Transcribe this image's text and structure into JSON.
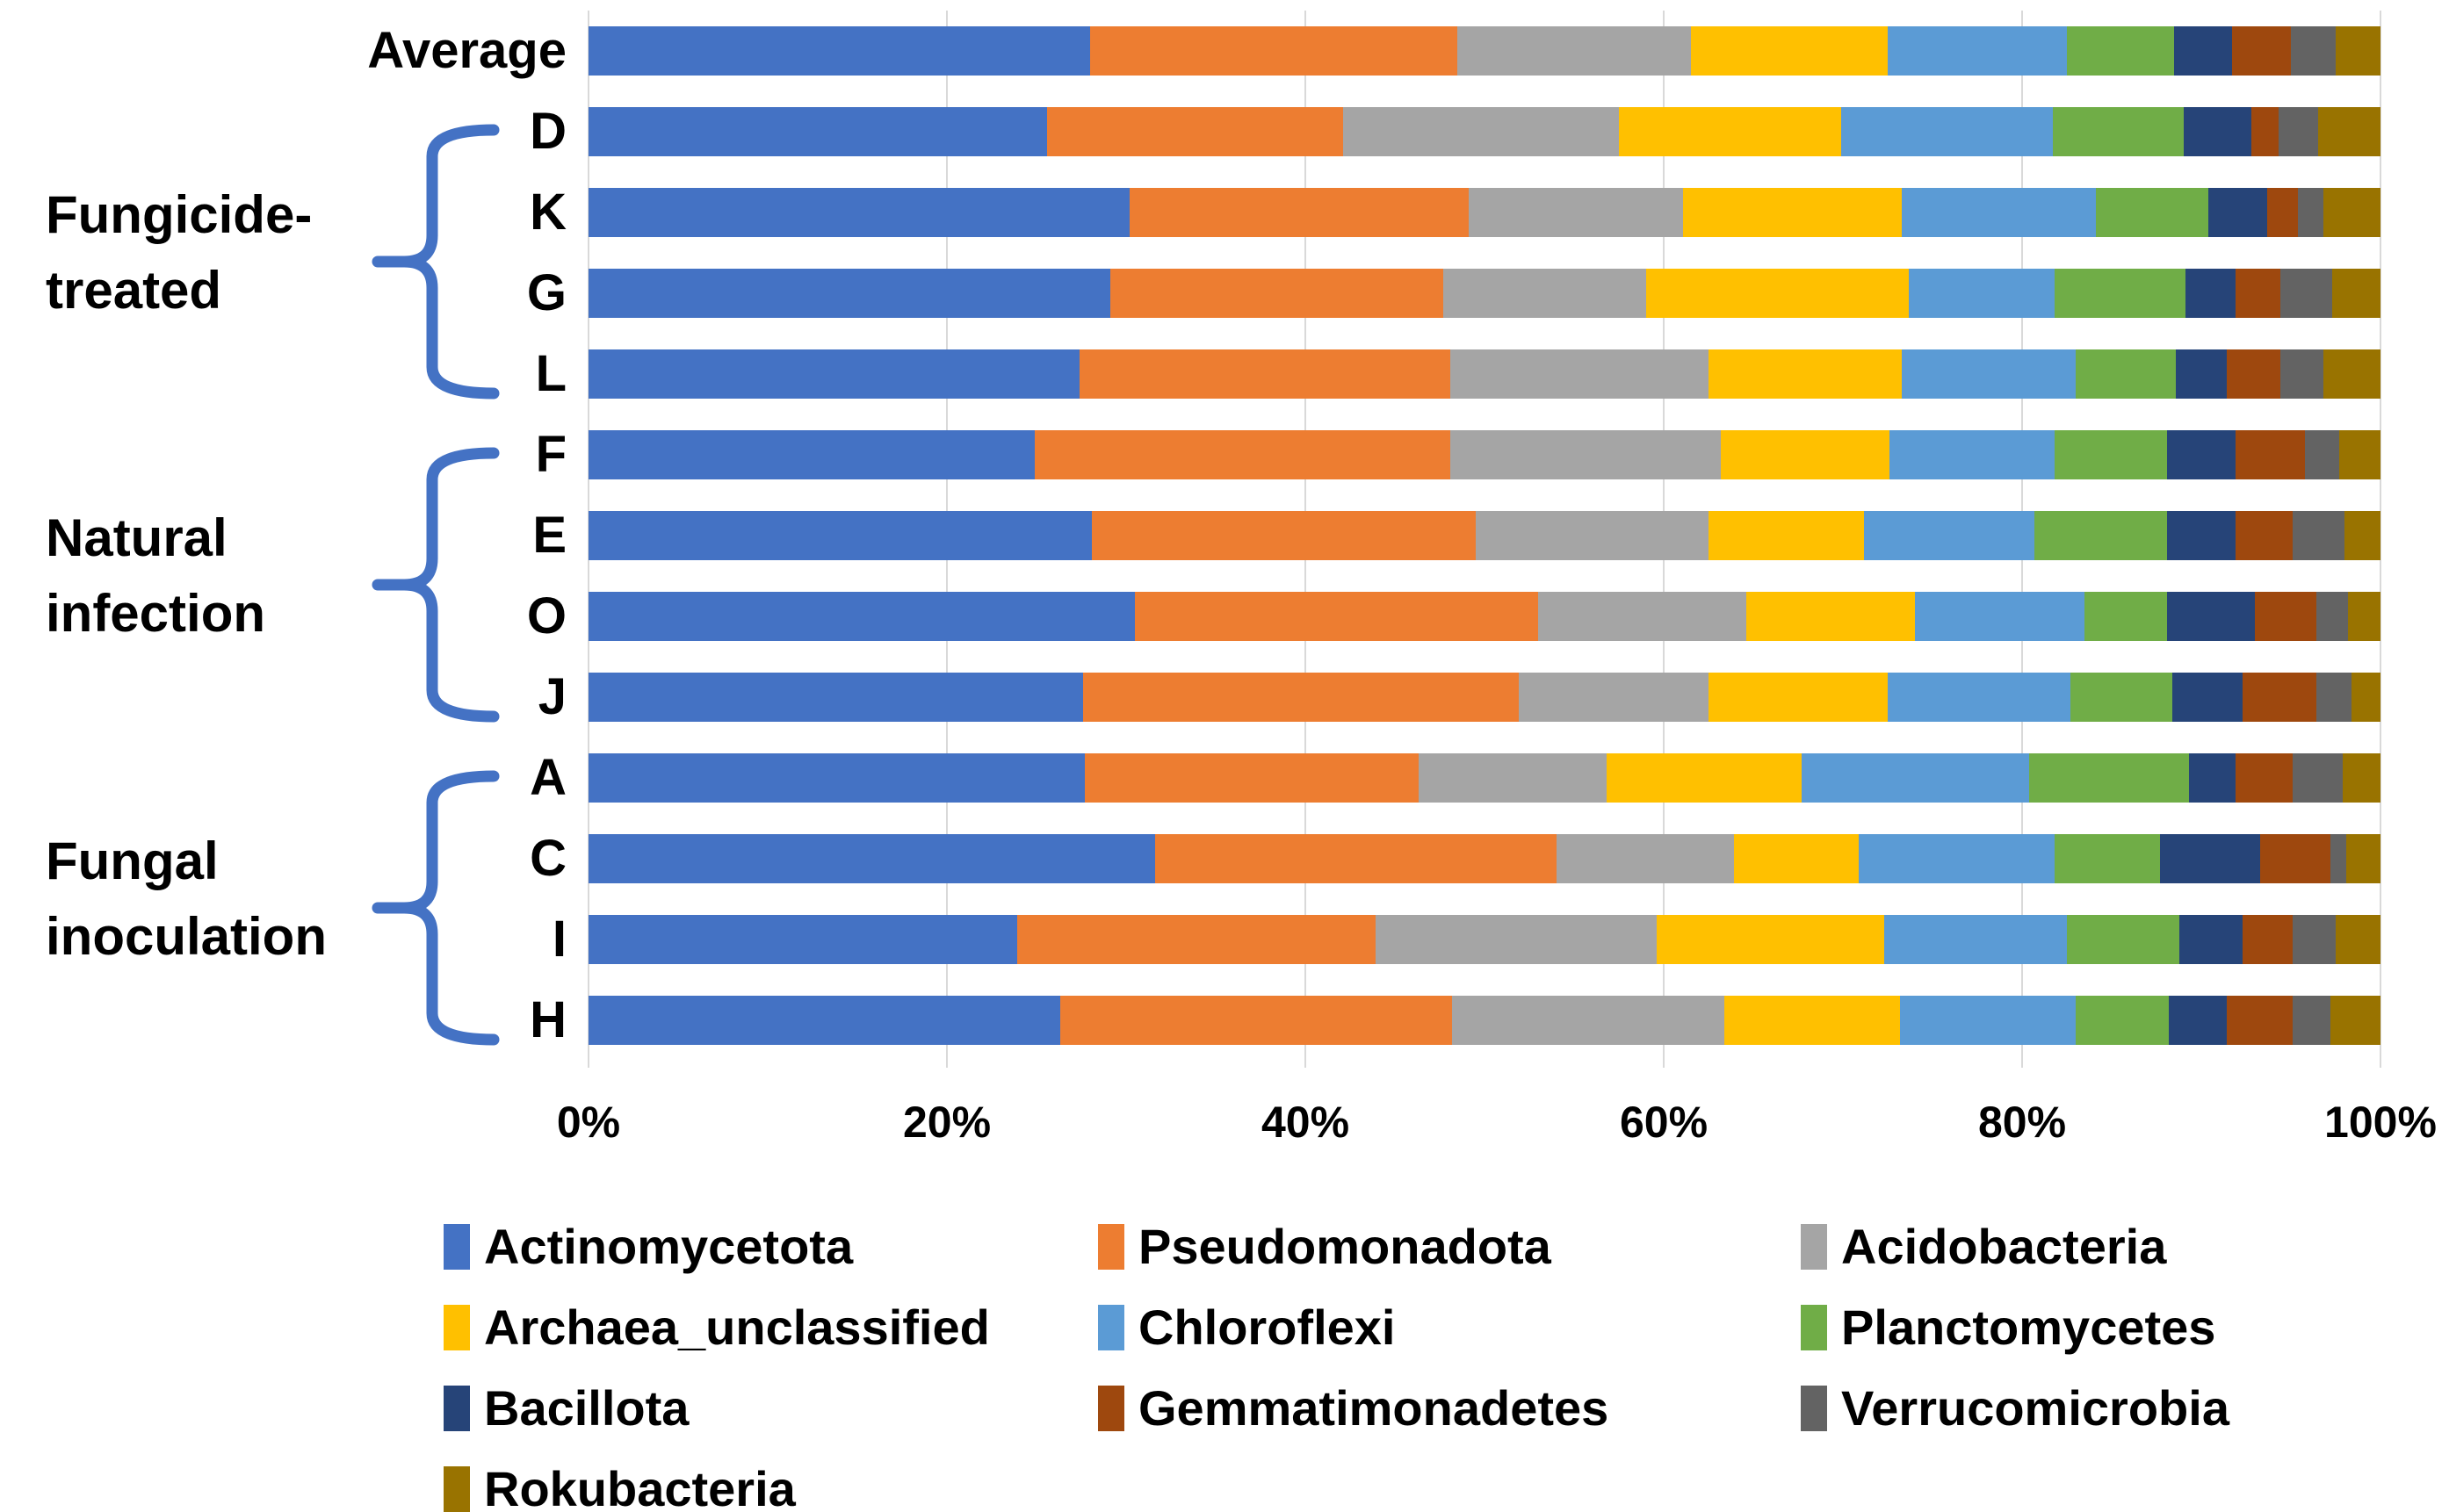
{
  "figure": {
    "background": "#ffffff",
    "text_color": "#000000",
    "gridline_color": "#d9d9d9",
    "brace_color": "#4472c4"
  },
  "axis": {
    "tick_labels": [
      "0%",
      "20%",
      "40%",
      "60%",
      "80%",
      "100%"
    ],
    "tick_values": [
      0,
      20,
      40,
      60,
      80,
      100
    ]
  },
  "groups": [
    {
      "label_lines": [
        "Fungicide-",
        "treated"
      ],
      "samples": [
        "D",
        "K",
        "G",
        "L"
      ]
    },
    {
      "label_lines": [
        "Natural",
        "infection"
      ],
      "samples": [
        "F",
        "E",
        "O",
        "J"
      ]
    },
    {
      "label_lines": [
        "Fungal",
        "inoculation"
      ],
      "samples": [
        "A",
        "C",
        "I",
        "H"
      ]
    }
  ],
  "chart_data": {
    "type": "bar",
    "orientation": "horizontal",
    "stacked": true,
    "units": "percent",
    "xlim": [
      0,
      100
    ],
    "grid": true,
    "legend_position": "bottom",
    "categories": [
      "Average",
      "D",
      "K",
      "G",
      "L",
      "F",
      "E",
      "O",
      "J",
      "A",
      "C",
      "I",
      "H"
    ],
    "series": [
      {
        "name": "Actinomycetota",
        "color": "#4472c4",
        "values": [
          28.0,
          25.6,
          30.2,
          29.1,
          27.4,
          24.9,
          28.1,
          30.5,
          27.6,
          27.7,
          31.6,
          23.9,
          26.3
        ]
      },
      {
        "name": "Pseudomonadota",
        "color": "#ed7d31",
        "values": [
          20.5,
          16.5,
          18.9,
          18.6,
          20.7,
          23.2,
          21.4,
          22.5,
          24.3,
          18.6,
          22.4,
          20.0,
          21.9
        ]
      },
      {
        "name": "Acidobacteria",
        "color": "#a5a5a5",
        "values": [
          13.0,
          15.4,
          12.0,
          11.3,
          14.4,
          15.1,
          13.0,
          11.6,
          10.6,
          10.5,
          9.9,
          15.7,
          15.2
        ]
      },
      {
        "name": "Archaea_unclassified",
        "color": "#ffc000",
        "values": [
          11.0,
          12.4,
          12.2,
          14.7,
          10.8,
          9.4,
          8.7,
          9.4,
          10.0,
          10.9,
          7.0,
          12.7,
          9.8
        ]
      },
      {
        "name": "Chloroflexi",
        "color": "#5b9bd5",
        "values": [
          10.0,
          11.8,
          10.8,
          8.1,
          9.7,
          9.2,
          9.5,
          9.5,
          10.2,
          12.7,
          10.9,
          10.2,
          9.8
        ]
      },
      {
        "name": "Planctomycetes",
        "color": "#70ad47",
        "values": [
          6.0,
          7.3,
          6.3,
          7.3,
          5.6,
          6.3,
          7.4,
          4.6,
          5.7,
          8.9,
          5.9,
          6.3,
          5.2
        ]
      },
      {
        "name": "Bacillota",
        "color": "#264478",
        "values": [
          3.2,
          3.8,
          3.3,
          2.8,
          2.8,
          3.8,
          3.8,
          4.9,
          3.9,
          2.6,
          5.6,
          3.5,
          3.2
        ]
      },
      {
        "name": "Gemmatimonadetes",
        "color": "#9e480e",
        "values": [
          3.3,
          1.5,
          1.7,
          2.5,
          3.0,
          3.9,
          3.2,
          3.4,
          4.1,
          3.2,
          3.9,
          2.8,
          3.7
        ]
      },
      {
        "name": "Verrucomicrobia",
        "color": "#636363",
        "values": [
          2.5,
          2.2,
          1.4,
          2.9,
          2.4,
          1.9,
          2.9,
          1.8,
          2.0,
          2.8,
          0.9,
          2.4,
          2.1
        ]
      },
      {
        "name": "Rokubacteria",
        "color": "#997300",
        "values": [
          2.5,
          3.5,
          3.2,
          2.7,
          3.2,
          2.3,
          2.0,
          1.8,
          1.6,
          2.1,
          1.9,
          2.5,
          2.8
        ]
      }
    ]
  },
  "legend": {
    "items": [
      "Actinomycetota",
      "Pseudomonadota",
      "Acidobacteria",
      "Archaea_unclassified",
      "Chloroflexi",
      "Planctomycetes",
      "Bacillota",
      "Gemmatimonadetes",
      "Verrucomicrobia",
      "Rokubacteria"
    ]
  }
}
